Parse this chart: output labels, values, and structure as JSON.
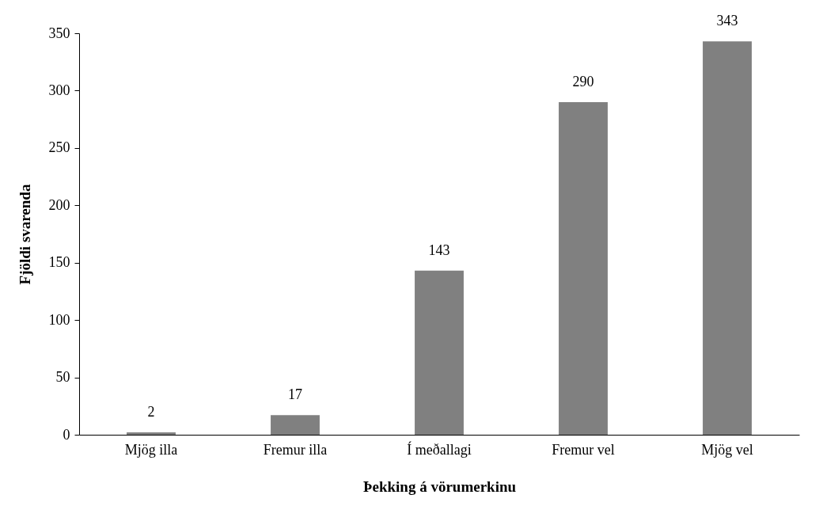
{
  "chart_data": {
    "type": "bar",
    "xlabel": "Þekking á vörumerkinu",
    "ylabel": "Fjöldi svarenda",
    "categories": [
      "Mjög illa",
      "Fremur illa",
      "Í meðallagi",
      "Fremur vel",
      "Mjög vel"
    ],
    "values": [
      2,
      17,
      143,
      290,
      343
    ],
    "color": "#808080",
    "ylim": [
      0,
      350
    ],
    "yticks": [
      0,
      50,
      100,
      150,
      200,
      250,
      300,
      350
    ],
    "grid": false,
    "data_labels": true
  }
}
